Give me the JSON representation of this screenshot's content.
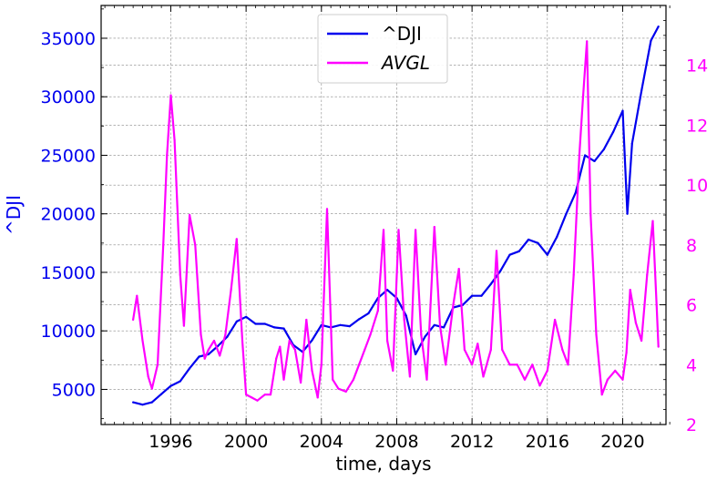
{
  "chart_data": {
    "type": "line",
    "x_axis": {
      "label": "time, days",
      "range": [
        1992.3,
        2022.3
      ],
      "ticks": [
        1996,
        2000,
        2004,
        2008,
        2012,
        2016,
        2020
      ],
      "tick_labels": [
        "1996",
        "2000",
        "2004",
        "2008",
        "2012",
        "2016",
        "2020"
      ],
      "minor_step": 0.5
    },
    "y_axis_left": {
      "label": "^DJI",
      "color": "#0000ee",
      "range": [
        2000,
        37800
      ],
      "ticks": [
        5000,
        10000,
        15000,
        20000,
        25000,
        30000,
        35000
      ],
      "tick_labels": [
        "5000",
        "10000",
        "15000",
        "20000",
        "25000",
        "30000",
        "35000"
      ],
      "minor_step": 2500
    },
    "y_axis_right": {
      "label": "",
      "color": "#ff00ff",
      "range": [
        2,
        16.0
      ],
      "ticks": [
        2,
        4,
        6,
        8,
        10,
        12,
        14
      ],
      "tick_labels": [
        "2",
        "4",
        "6",
        "8",
        "10",
        "12",
        "14"
      ],
      "minor_step": 0.5
    },
    "grid": true,
    "legend": {
      "placement": "top-center",
      "entries": [
        {
          "label": "^DJI",
          "color": "#0000ee",
          "italic": false
        },
        {
          "label": "AVGL",
          "color": "#ff00ff",
          "italic": true
        }
      ]
    },
    "series": [
      {
        "name": "^DJI",
        "axis": "left",
        "color": "#0000ee",
        "x": [
          1994.0,
          1994.5,
          1995.0,
          1995.5,
          1996.0,
          1996.5,
          1997.0,
          1997.5,
          1998.0,
          1998.5,
          1999.0,
          1999.5,
          2000.0,
          2000.5,
          2001.0,
          2001.5,
          2002.0,
          2002.5,
          2003.0,
          2003.5,
          2004.0,
          2004.5,
          2005.0,
          2005.5,
          2006.0,
          2006.5,
          2007.0,
          2007.5,
          2008.0,
          2008.5,
          2009.0,
          2009.5,
          2010.0,
          2010.5,
          2011.0,
          2011.5,
          2012.0,
          2012.5,
          2013.0,
          2013.5,
          2014.0,
          2014.5,
          2015.0,
          2015.5,
          2016.0,
          2016.5,
          2017.0,
          2017.5,
          2018.0,
          2018.5,
          2019.0,
          2019.5,
          2020.0,
          2020.25,
          2020.5,
          2021.0,
          2021.5,
          2021.9
        ],
        "y": [
          3900,
          3700,
          3900,
          4600,
          5300,
          5700,
          6800,
          7800,
          8000,
          8700,
          9500,
          10800,
          11200,
          10600,
          10600,
          10300,
          10200,
          8800,
          8200,
          9200,
          10500,
          10300,
          10500,
          10400,
          11000,
          11500,
          12800,
          13500,
          12800,
          11300,
          8000,
          9500,
          10500,
          10300,
          12000,
          12200,
          13000,
          13000,
          14000,
          15100,
          16500,
          16800,
          17800,
          17500,
          16500,
          18000,
          20000,
          21800,
          25000,
          24500,
          25500,
          27000,
          28800,
          20000,
          26000,
          30500,
          34800,
          36000
        ]
      },
      {
        "name": "AVGL",
        "axis": "right",
        "color": "#ff00ff",
        "x": [
          1994.0,
          1994.2,
          1994.5,
          1994.8,
          1995.0,
          1995.3,
          1995.6,
          1995.8,
          1996.0,
          1996.2,
          1996.5,
          1996.7,
          1997.0,
          1997.3,
          1997.6,
          1997.8,
          1998.0,
          1998.3,
          1998.6,
          1998.9,
          1999.2,
          1999.5,
          1999.8,
          2000.0,
          2000.3,
          2000.6,
          2001.0,
          2001.3,
          2001.6,
          2001.8,
          2002.0,
          2002.3,
          2002.6,
          2002.9,
          2003.2,
          2003.5,
          2003.8,
          2004.0,
          2004.3,
          2004.6,
          2004.9,
          2005.3,
          2005.7,
          2006.0,
          2006.3,
          2006.6,
          2007.0,
          2007.3,
          2007.5,
          2007.8,
          2008.1,
          2008.4,
          2008.7,
          2009.0,
          2009.3,
          2009.6,
          2010.0,
          2010.3,
          2010.6,
          2011.0,
          2011.3,
          2011.6,
          2012.0,
          2012.3,
          2012.6,
          2013.0,
          2013.3,
          2013.6,
          2014.0,
          2014.4,
          2014.8,
          2015.2,
          2015.6,
          2016.0,
          2016.4,
          2016.8,
          2017.1,
          2017.4,
          2017.7,
          2017.9,
          2018.1,
          2018.3,
          2018.6,
          2018.9,
          2019.2,
          2019.6,
          2020.0,
          2020.2,
          2020.4,
          2020.7,
          2021.0,
          2021.3,
          2021.6,
          2021.8,
          2021.9
        ],
        "y": [
          5.5,
          6.3,
          4.8,
          3.6,
          3.2,
          4.0,
          8.0,
          11.0,
          13.0,
          11.5,
          7.0,
          5.3,
          9.0,
          8.0,
          5.0,
          4.2,
          4.5,
          4.8,
          4.3,
          5.0,
          6.5,
          8.2,
          4.8,
          3.0,
          2.9,
          2.8,
          3.0,
          3.0,
          4.2,
          4.6,
          3.5,
          4.8,
          4.5,
          3.4,
          5.5,
          3.8,
          2.9,
          4.0,
          9.2,
          3.5,
          3.2,
          3.1,
          3.5,
          4.0,
          4.5,
          5.0,
          5.8,
          8.5,
          4.8,
          3.8,
          8.5,
          5.5,
          3.6,
          8.5,
          5.0,
          3.5,
          8.6,
          5.3,
          4.0,
          6.0,
          7.2,
          4.5,
          4.0,
          4.7,
          3.6,
          4.5,
          7.8,
          4.5,
          4.0,
          4.0,
          3.5,
          4.0,
          3.3,
          3.8,
          5.5,
          4.5,
          4.0,
          7.0,
          11.0,
          13.0,
          14.8,
          9.0,
          5.0,
          3.0,
          3.5,
          3.8,
          3.5,
          4.4,
          6.5,
          5.4,
          4.8,
          7.0,
          8.8,
          6.0,
          4.6
        ]
      }
    ]
  }
}
